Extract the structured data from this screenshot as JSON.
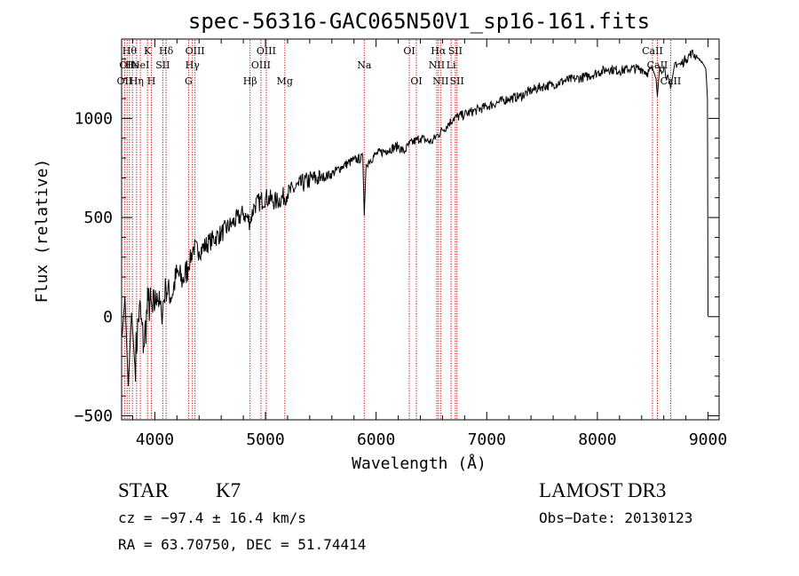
{
  "chart_data": {
    "type": "line",
    "title": "spec-56316-GAC065N50V1_sp16-161.fits",
    "xlabel": "Wavelength (Å)",
    "ylabel": "Flux (relative)",
    "xlim": [
      3700,
      9100
    ],
    "ylim": [
      -520,
      1400
    ],
    "xticks": [
      {
        "value": 4000,
        "label": "4000"
      },
      {
        "value": 5000,
        "label": "5000"
      },
      {
        "value": 6000,
        "label": "6000"
      },
      {
        "value": 7000,
        "label": "7000"
      },
      {
        "value": 8000,
        "label": "8000"
      },
      {
        "value": 9000,
        "label": "9000"
      }
    ],
    "yticks": [
      {
        "value": -500,
        "label": "−500"
      },
      {
        "value": 0,
        "label": "0"
      },
      {
        "value": 500,
        "label": "500"
      },
      {
        "value": 1000,
        "label": "1000"
      }
    ],
    "series": [
      {
        "name": "spectrum",
        "x": [
          3705,
          3730,
          3760,
          3790,
          3820,
          3860,
          3900,
          3940,
          3980,
          4020,
          4060,
          4100,
          4150,
          4200,
          4250,
          4300,
          4350,
          4400,
          4500,
          4600,
          4700,
          4800,
          4860,
          4900,
          5000,
          5100,
          5200,
          5300,
          5400,
          5500,
          5600,
          5700,
          5800,
          5880,
          5893,
          5910,
          6000,
          6100,
          6200,
          6250,
          6300,
          6400,
          6500,
          6560,
          6600,
          6700,
          6800,
          6900,
          7000,
          7100,
          7200,
          7300,
          7400,
          7500,
          7600,
          7700,
          7800,
          7900,
          8000,
          8100,
          8200,
          8300,
          8400,
          8450,
          8500,
          8530,
          8542,
          8560,
          8600,
          8662,
          8700,
          8750,
          8800,
          8850,
          8900,
          8950,
          8980,
          8995,
          9000
        ],
        "y": [
          -100,
          100,
          -350,
          20,
          -250,
          50,
          -150,
          80,
          20,
          120,
          10,
          150,
          100,
          220,
          180,
          250,
          350,
          330,
          380,
          420,
          470,
          520,
          480,
          560,
          600,
          580,
          620,
          660,
          690,
          700,
          720,
          760,
          790,
          800,
          510,
          770,
          820,
          840,
          860,
          830,
          870,
          900,
          880,
          920,
          940,
          1000,
          1020,
          1040,
          1060,
          1080,
          1100,
          1110,
          1140,
          1160,
          1170,
          1190,
          1200,
          1210,
          1230,
          1250,
          1240,
          1250,
          1250,
          1230,
          1250,
          1200,
          1110,
          1240,
          1260,
          1150,
          1280,
          1270,
          1300,
          1330,
          1310,
          1280,
          1250,
          1100,
          0
        ]
      }
    ],
    "lines": [
      {
        "wavelength": 3727,
        "label": "OII",
        "row": 2
      },
      {
        "wavelength": 3750,
        "label": "OII",
        "row": 1
      },
      {
        "wavelength": 3771,
        "label": "Hθ",
        "row": 0
      },
      {
        "wavelength": 3798,
        "label": "He",
        "row": 1
      },
      {
        "wavelength": 3835,
        "label": "Hη",
        "row": 2
      },
      {
        "wavelength": 3869,
        "label": "NeI",
        "row": 1
      },
      {
        "wavelength": 3934,
        "label": "K",
        "row": 0
      },
      {
        "wavelength": 3969,
        "label": "H",
        "row": 2
      },
      {
        "wavelength": 4072,
        "label": "SII",
        "row": 1
      },
      {
        "wavelength": 4102,
        "label": "Hδ",
        "row": 0
      },
      {
        "wavelength": 4305,
        "label": "G",
        "row": 2
      },
      {
        "wavelength": 4340,
        "label": "Hγ",
        "row": 1
      },
      {
        "wavelength": 4363,
        "label": "OIII",
        "row": 0
      },
      {
        "wavelength": 4861,
        "label": "Hβ",
        "row": 2
      },
      {
        "wavelength": 4959,
        "label": "OIII",
        "row": 1
      },
      {
        "wavelength": 5007,
        "label": "OIII",
        "row": 0
      },
      {
        "wavelength": 5175,
        "label": "Mg",
        "row": 2
      },
      {
        "wavelength": 5893,
        "label": "Na",
        "row": 1
      },
      {
        "wavelength": 6300,
        "label": "OI",
        "row": 0
      },
      {
        "wavelength": 6364,
        "label": "OI",
        "row": 2
      },
      {
        "wavelength": 6548,
        "label": "NII",
        "row": 1
      },
      {
        "wavelength": 6563,
        "label": "Hα",
        "row": 0
      },
      {
        "wavelength": 6583,
        "label": "NII",
        "row": 2
      },
      {
        "wavelength": 6678,
        "label": "Li",
        "row": 1
      },
      {
        "wavelength": 6716,
        "label": "SII",
        "row": 0
      },
      {
        "wavelength": 6731,
        "label": "SII",
        "row": 2
      },
      {
        "wavelength": 8498,
        "label": "CaII",
        "row": 0
      },
      {
        "wavelength": 8542,
        "label": "CaII",
        "row": 1
      },
      {
        "wavelength": 8662,
        "label": "CaII",
        "row": 2
      }
    ]
  },
  "info": {
    "class_label": "STAR",
    "subclass": "K7",
    "survey": "LAMOST DR3",
    "redshift": "cz = −97.4 ± 16.4 km/s",
    "obs_date": "Obs−Date: 20130123",
    "coords": "RA =  63.70750, DEC =  51.74414"
  },
  "colors": {
    "line_marker": "#cc0000",
    "spectrum": "#000000",
    "axes": "#000000"
  }
}
